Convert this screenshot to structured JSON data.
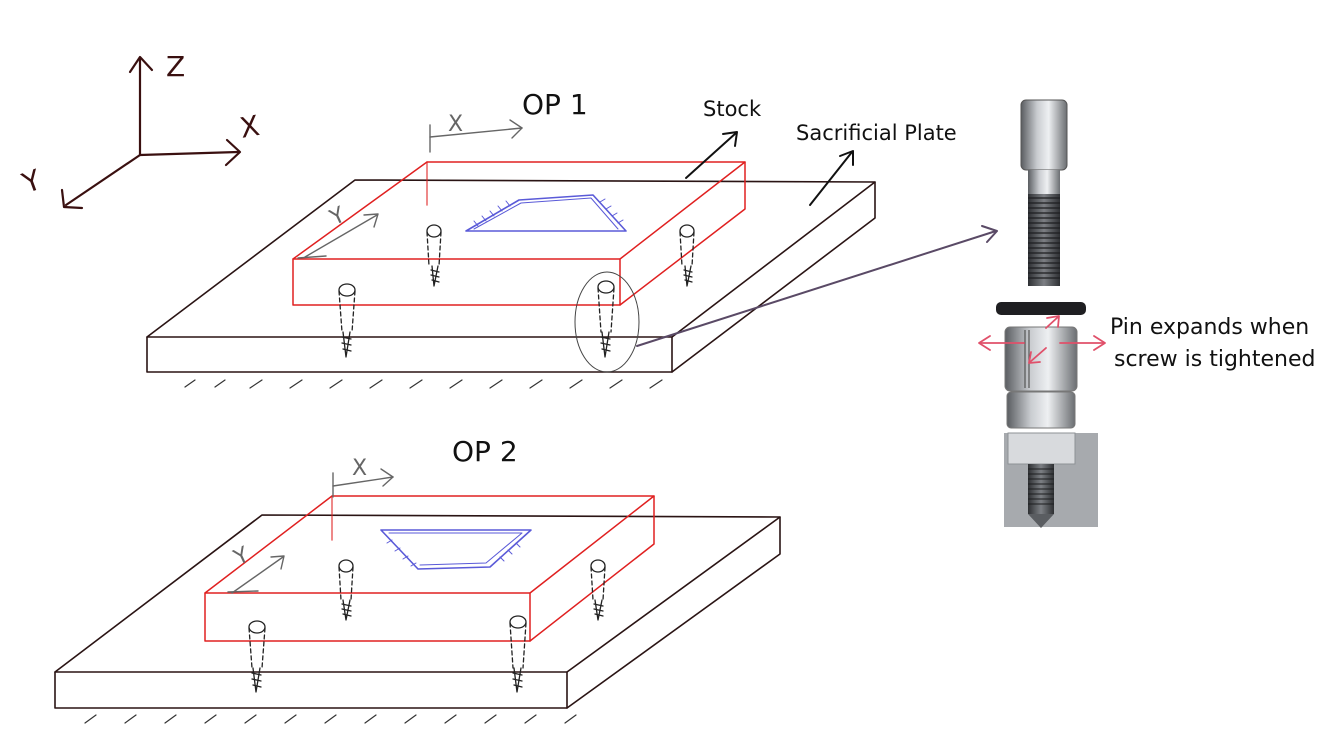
{
  "axes": {
    "z_label": "Z",
    "x_label": "X",
    "y_label": "Y"
  },
  "op1": {
    "title": "OP 1",
    "x_label": "X",
    "y_label": "Y"
  },
  "op2": {
    "title": "OP 2",
    "x_label": "X",
    "y_label": "Y"
  },
  "labels": {
    "stock": "Stock",
    "sacrificial_plate": "Sacrificial Plate",
    "pin_note_line1": "Pin expands when",
    "pin_note_line2": "screw is tightened"
  },
  "colors": {
    "plate": "#2a1414",
    "stock": "#e02020",
    "pocket": "#5a5ad8",
    "annotation": "#111111",
    "arrow": "#5a4a66",
    "expand_arrow": "#e0506a",
    "metal_dark": "#5a5d61",
    "metal_light": "#c9ccd0"
  }
}
